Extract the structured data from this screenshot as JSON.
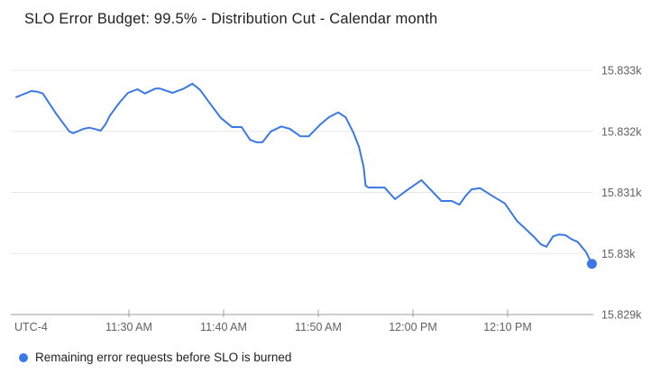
{
  "header": {
    "title": "SLO Error Budget: 99.5% - Distribution Cut - Calendar month"
  },
  "legend": {
    "label": "Remaining error requests before SLO is burned",
    "marker_color": "#3b78e7"
  },
  "colors": {
    "series_blue": "#3b78e7",
    "gridline": "#e8e8e8",
    "axis": "#9e9e9e",
    "axis_text": "#616161"
  },
  "chart_data": {
    "type": "line",
    "title": "SLO Error Budget: 99.5% - Distribution Cut - Calendar month",
    "x_axis": {
      "timezone_label": "UTC-4",
      "tick_labels": [
        "11:30 AM",
        "11:40 AM",
        "11:50 AM",
        "12:00 PM",
        "12:10 PM"
      ],
      "tick_minutes_after_11am": [
        30,
        40,
        50,
        60,
        70
      ],
      "range_minutes_after_11am": [
        18.1,
        78.9
      ],
      "grid": false
    },
    "y_axis": {
      "side": "right",
      "tick_labels": [
        "15.833k",
        "15.832k",
        "15.831k",
        "15.83k",
        "15.829k"
      ],
      "tick_values": [
        15833,
        15832,
        15831,
        15830,
        15829
      ],
      "range": [
        15829,
        15833
      ],
      "grid": true
    },
    "legend_position": "bottom-left",
    "series": [
      {
        "name": "Remaining error requests before SLO is burned",
        "color": "#3b78e7",
        "endpoint_dot": true,
        "t_minutes_after_11am": [
          18.1,
          19.7,
          20.3,
          20.9,
          22.3,
          23.7,
          24.1,
          25.2,
          25.8,
          26.6,
          27.0,
          27.5,
          28.0,
          29.0,
          29.9,
          30.9,
          31.7,
          32.8,
          33.3,
          34.6,
          35.8,
          36.7,
          37.5,
          38.6,
          39.7,
          40.9,
          41.9,
          42.8,
          43.5,
          44.1,
          45.0,
          46.1,
          47.0,
          48.1,
          49.0,
          50.2,
          51.1,
          52.1,
          52.9,
          53.7,
          54.3,
          54.8,
          55.0,
          55.3,
          57.0,
          58.1,
          59.4,
          60.9,
          61.9,
          63.0,
          64.1,
          64.9,
          65.6,
          66.2,
          67.1,
          68.5,
          69.7,
          71.0,
          71.7,
          72.8,
          73.5,
          74.1,
          74.8,
          75.4,
          76.1,
          76.8,
          77.4,
          78.3,
          78.9
        ],
        "values": [
          15832.56,
          15832.66,
          15832.65,
          15832.62,
          15832.29,
          15832.0,
          15831.97,
          15832.04,
          15832.06,
          15832.03,
          15832.01,
          15832.11,
          15832.26,
          15832.47,
          15832.63,
          15832.69,
          15832.62,
          15832.7,
          15832.7,
          15832.63,
          15832.7,
          15832.78,
          15832.68,
          15832.45,
          15832.22,
          15832.07,
          15832.07,
          15831.86,
          15831.82,
          15831.82,
          15832.0,
          15832.08,
          15832.04,
          15831.92,
          15831.92,
          15832.11,
          15832.23,
          15832.31,
          15832.23,
          15831.98,
          15831.75,
          15831.41,
          15831.11,
          15831.08,
          15831.08,
          15830.89,
          15831.04,
          15831.2,
          15831.04,
          15830.86,
          15830.86,
          15830.8,
          15830.95,
          15831.05,
          15831.07,
          15830.93,
          15830.82,
          15830.53,
          15830.43,
          15830.27,
          15830.15,
          15830.11,
          15830.28,
          15830.31,
          15830.3,
          15830.23,
          15830.19,
          15830.02,
          15829.83
        ]
      }
    ]
  }
}
